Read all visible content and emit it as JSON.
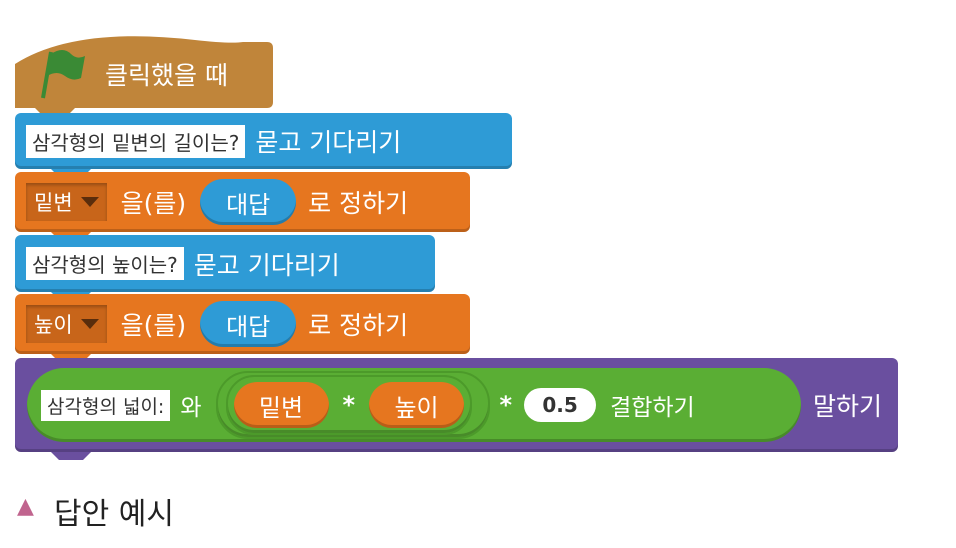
{
  "hat": {
    "label": "클릭했을 때",
    "icon": "green-flag-icon"
  },
  "ask1": {
    "question": "삼각형의 밑변의 길이는?",
    "label": "묻고 기다리기"
  },
  "set1": {
    "variable": "밑변",
    "label_a": "을(를)",
    "reporter": "대답",
    "label_b": "로 정하기"
  },
  "ask2": {
    "question": "삼각형의 높이는?",
    "label": "묻고 기다리기"
  },
  "set2": {
    "variable": "높이",
    "label_a": "을(를)",
    "reporter": "대답",
    "label_b": "로 정하기"
  },
  "say": {
    "join_text": "삼각형의 넓이:",
    "join_word": "와",
    "var1": "밑변",
    "op1": "*",
    "var2": "높이",
    "op2": "*",
    "number": "0.5",
    "join_label": "결합하기",
    "label": "말하기"
  },
  "caption": {
    "marker": "▲",
    "text": "답안 예시"
  },
  "colors": {
    "events": "#c0853a",
    "sensing": "#2e9bd6",
    "data": "#e6761f",
    "looks": "#6a4f9f",
    "operators": "#5aae34",
    "caption_marker": "#c0648e"
  }
}
